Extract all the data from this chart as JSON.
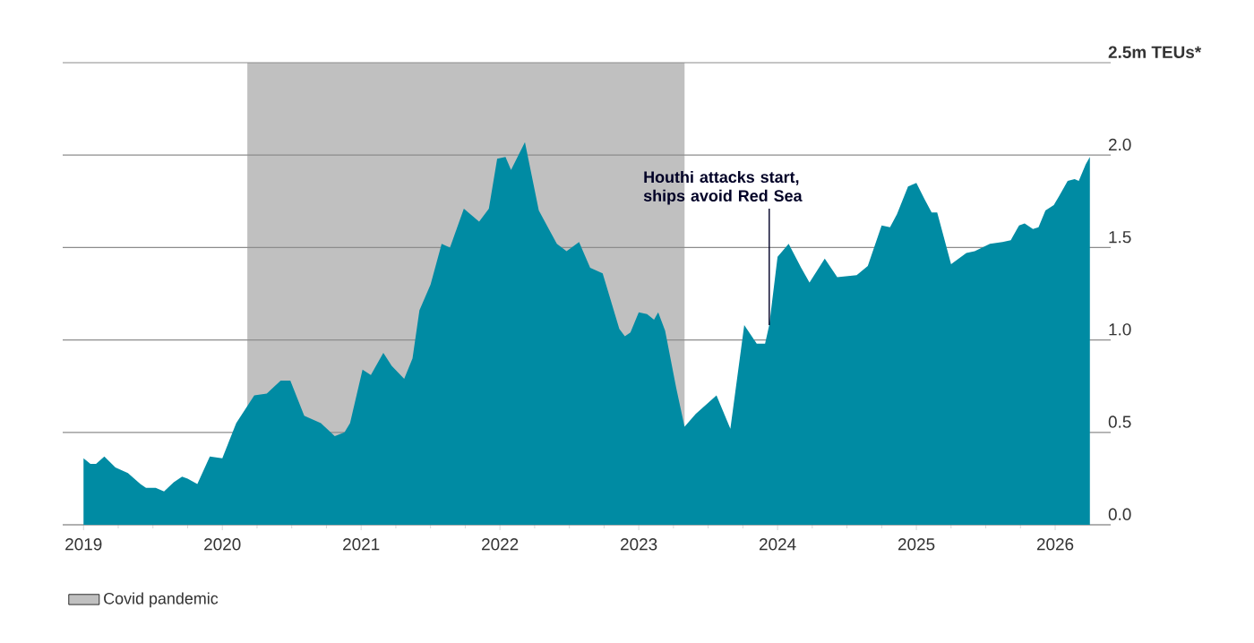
{
  "chart_data": {
    "type": "area",
    "color": "#008ba3",
    "x": [
      2019.0,
      2019.05,
      2019.09,
      2019.15,
      2019.23,
      2019.32,
      2019.41,
      2019.45,
      2019.52,
      2019.58,
      2019.65,
      2019.71,
      2019.75,
      2019.82,
      2019.91,
      2020.0,
      2020.1,
      2020.23,
      2020.32,
      2020.42,
      2020.49,
      2020.59,
      2020.71,
      2020.81,
      2020.88,
      2020.92,
      2021.01,
      2021.07,
      2021.16,
      2021.22,
      2021.31,
      2021.37,
      2021.42,
      2021.5,
      2021.58,
      2021.64,
      2021.74,
      2021.85,
      2021.92,
      2021.98,
      2022.04,
      2022.08,
      2022.18,
      2022.28,
      2022.41,
      2022.48,
      2022.57,
      2022.65,
      2022.74,
      2022.86,
      2022.9,
      2022.94,
      2023.0,
      2023.06,
      2023.11,
      2023.14,
      2023.19,
      2023.27,
      2023.33,
      2023.41,
      2023.56,
      2023.66,
      2023.76,
      2023.85,
      2023.91,
      2023.94,
      2024.0,
      2024.08,
      2024.17,
      2024.23,
      2024.34,
      2024.43,
      2024.57,
      2024.65,
      2024.75,
      2024.81,
      2024.86,
      2024.94,
      2025.0,
      2025.06,
      2025.11,
      2025.15,
      2025.25,
      2025.36,
      2025.42,
      2025.53,
      2025.62,
      2025.68,
      2025.74,
      2025.78,
      2025.84,
      2025.88,
      2025.93,
      2025.99,
      2026.03,
      2026.09,
      2026.14,
      2026.17,
      2026.22,
      2026.25
    ],
    "values": [
      0.36,
      0.33,
      0.33,
      0.37,
      0.31,
      0.28,
      0.22,
      0.2,
      0.2,
      0.18,
      0.23,
      0.26,
      0.25,
      0.22,
      0.37,
      0.36,
      0.55,
      0.7,
      0.71,
      0.78,
      0.78,
      0.59,
      0.55,
      0.48,
      0.5,
      0.55,
      0.84,
      0.81,
      0.93,
      0.86,
      0.79,
      0.9,
      1.16,
      1.3,
      1.52,
      1.5,
      1.71,
      1.64,
      1.71,
      1.98,
      1.99,
      1.92,
      2.07,
      1.7,
      1.52,
      1.48,
      1.53,
      1.39,
      1.36,
      1.06,
      1.02,
      1.04,
      1.15,
      1.14,
      1.11,
      1.15,
      1.05,
      0.74,
      0.53,
      0.6,
      0.7,
      0.52,
      1.08,
      0.98,
      0.98,
      1.08,
      1.45,
      1.52,
      1.39,
      1.31,
      1.44,
      1.34,
      1.35,
      1.4,
      1.62,
      1.61,
      1.68,
      1.83,
      1.85,
      1.76,
      1.69,
      1.69,
      1.41,
      1.47,
      1.48,
      1.52,
      1.53,
      1.54,
      1.62,
      1.63,
      1.6,
      1.61,
      1.7,
      1.73,
      1.78,
      1.86,
      1.87,
      1.86,
      1.95,
      1.99
    ],
    "xlim": [
      2018.85,
      2026.4
    ],
    "xticks": [
      2019,
      2020,
      2021,
      2022,
      2023,
      2024,
      2025,
      2026
    ],
    "ylim": [
      0,
      2.5
    ],
    "yticks": [
      {
        "value": 0,
        "label": "0.0"
      },
      0.5,
      {
        "value": 1,
        "label": "1.0"
      },
      1.5,
      {
        "value": 2,
        "label": "2.0"
      },
      {
        "value": 2.5,
        "label": "2.5m TEUs*"
      }
    ],
    "grid": "y",
    "legend": "bottom left",
    "bands": [
      {
        "axis": "x",
        "from": 2020.18,
        "to": 2023.33,
        "label": "Covid pandemic",
        "color": "#c0c0c0"
      }
    ],
    "annotations": [
      {
        "text": "Houthi attacks start, ships avoid Red Sea",
        "x": 2023.94,
        "y": 1.08
      }
    ]
  }
}
